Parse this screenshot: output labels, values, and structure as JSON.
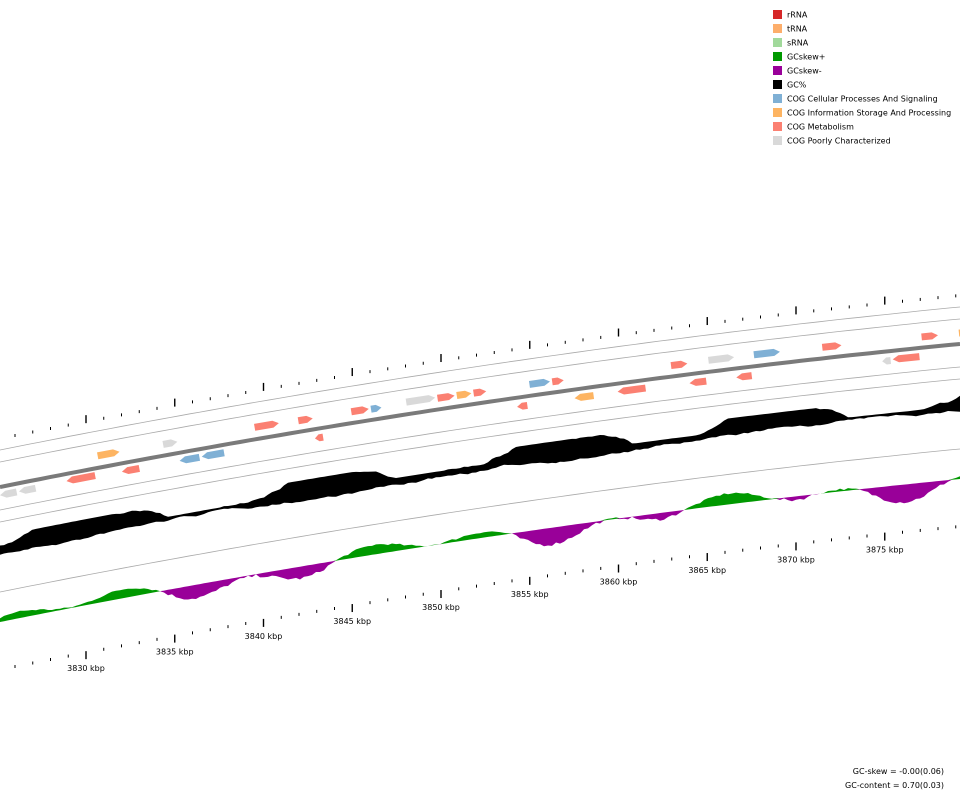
{
  "legend": [
    {
      "label": "rRNA",
      "color": "#d62728"
    },
    {
      "label": "tRNA",
      "color": "#fdae6b"
    },
    {
      "label": "sRNA",
      "color": "#a1d99b"
    },
    {
      "label": "GCskew+",
      "color": "#009900"
    },
    {
      "label": "GCskew-",
      "color": "#990099"
    },
    {
      "label": "GC%",
      "color": "#000000"
    },
    {
      "label": "COG Cellular Processes And Signaling",
      "color": "#7fb0d5"
    },
    {
      "label": "COG Information Storage And Processing",
      "color": "#fdb462"
    },
    {
      "label": "COG Metabolism",
      "color": "#fb8072"
    },
    {
      "label": "COG Poorly Characterized",
      "color": "#d9d9d9"
    }
  ],
  "ticks": [
    "3830 kbp",
    "3835 kbp",
    "3840 kbp",
    "3845 kbp",
    "3850 kbp",
    "3855 kbp",
    "3860 kbp",
    "3865 kbp",
    "3870 kbp",
    "3875 kbp"
  ],
  "footer": [
    "GC-skew = -0.00(0.06)",
    "GC-content = 0.70(0.03)"
  ]
}
